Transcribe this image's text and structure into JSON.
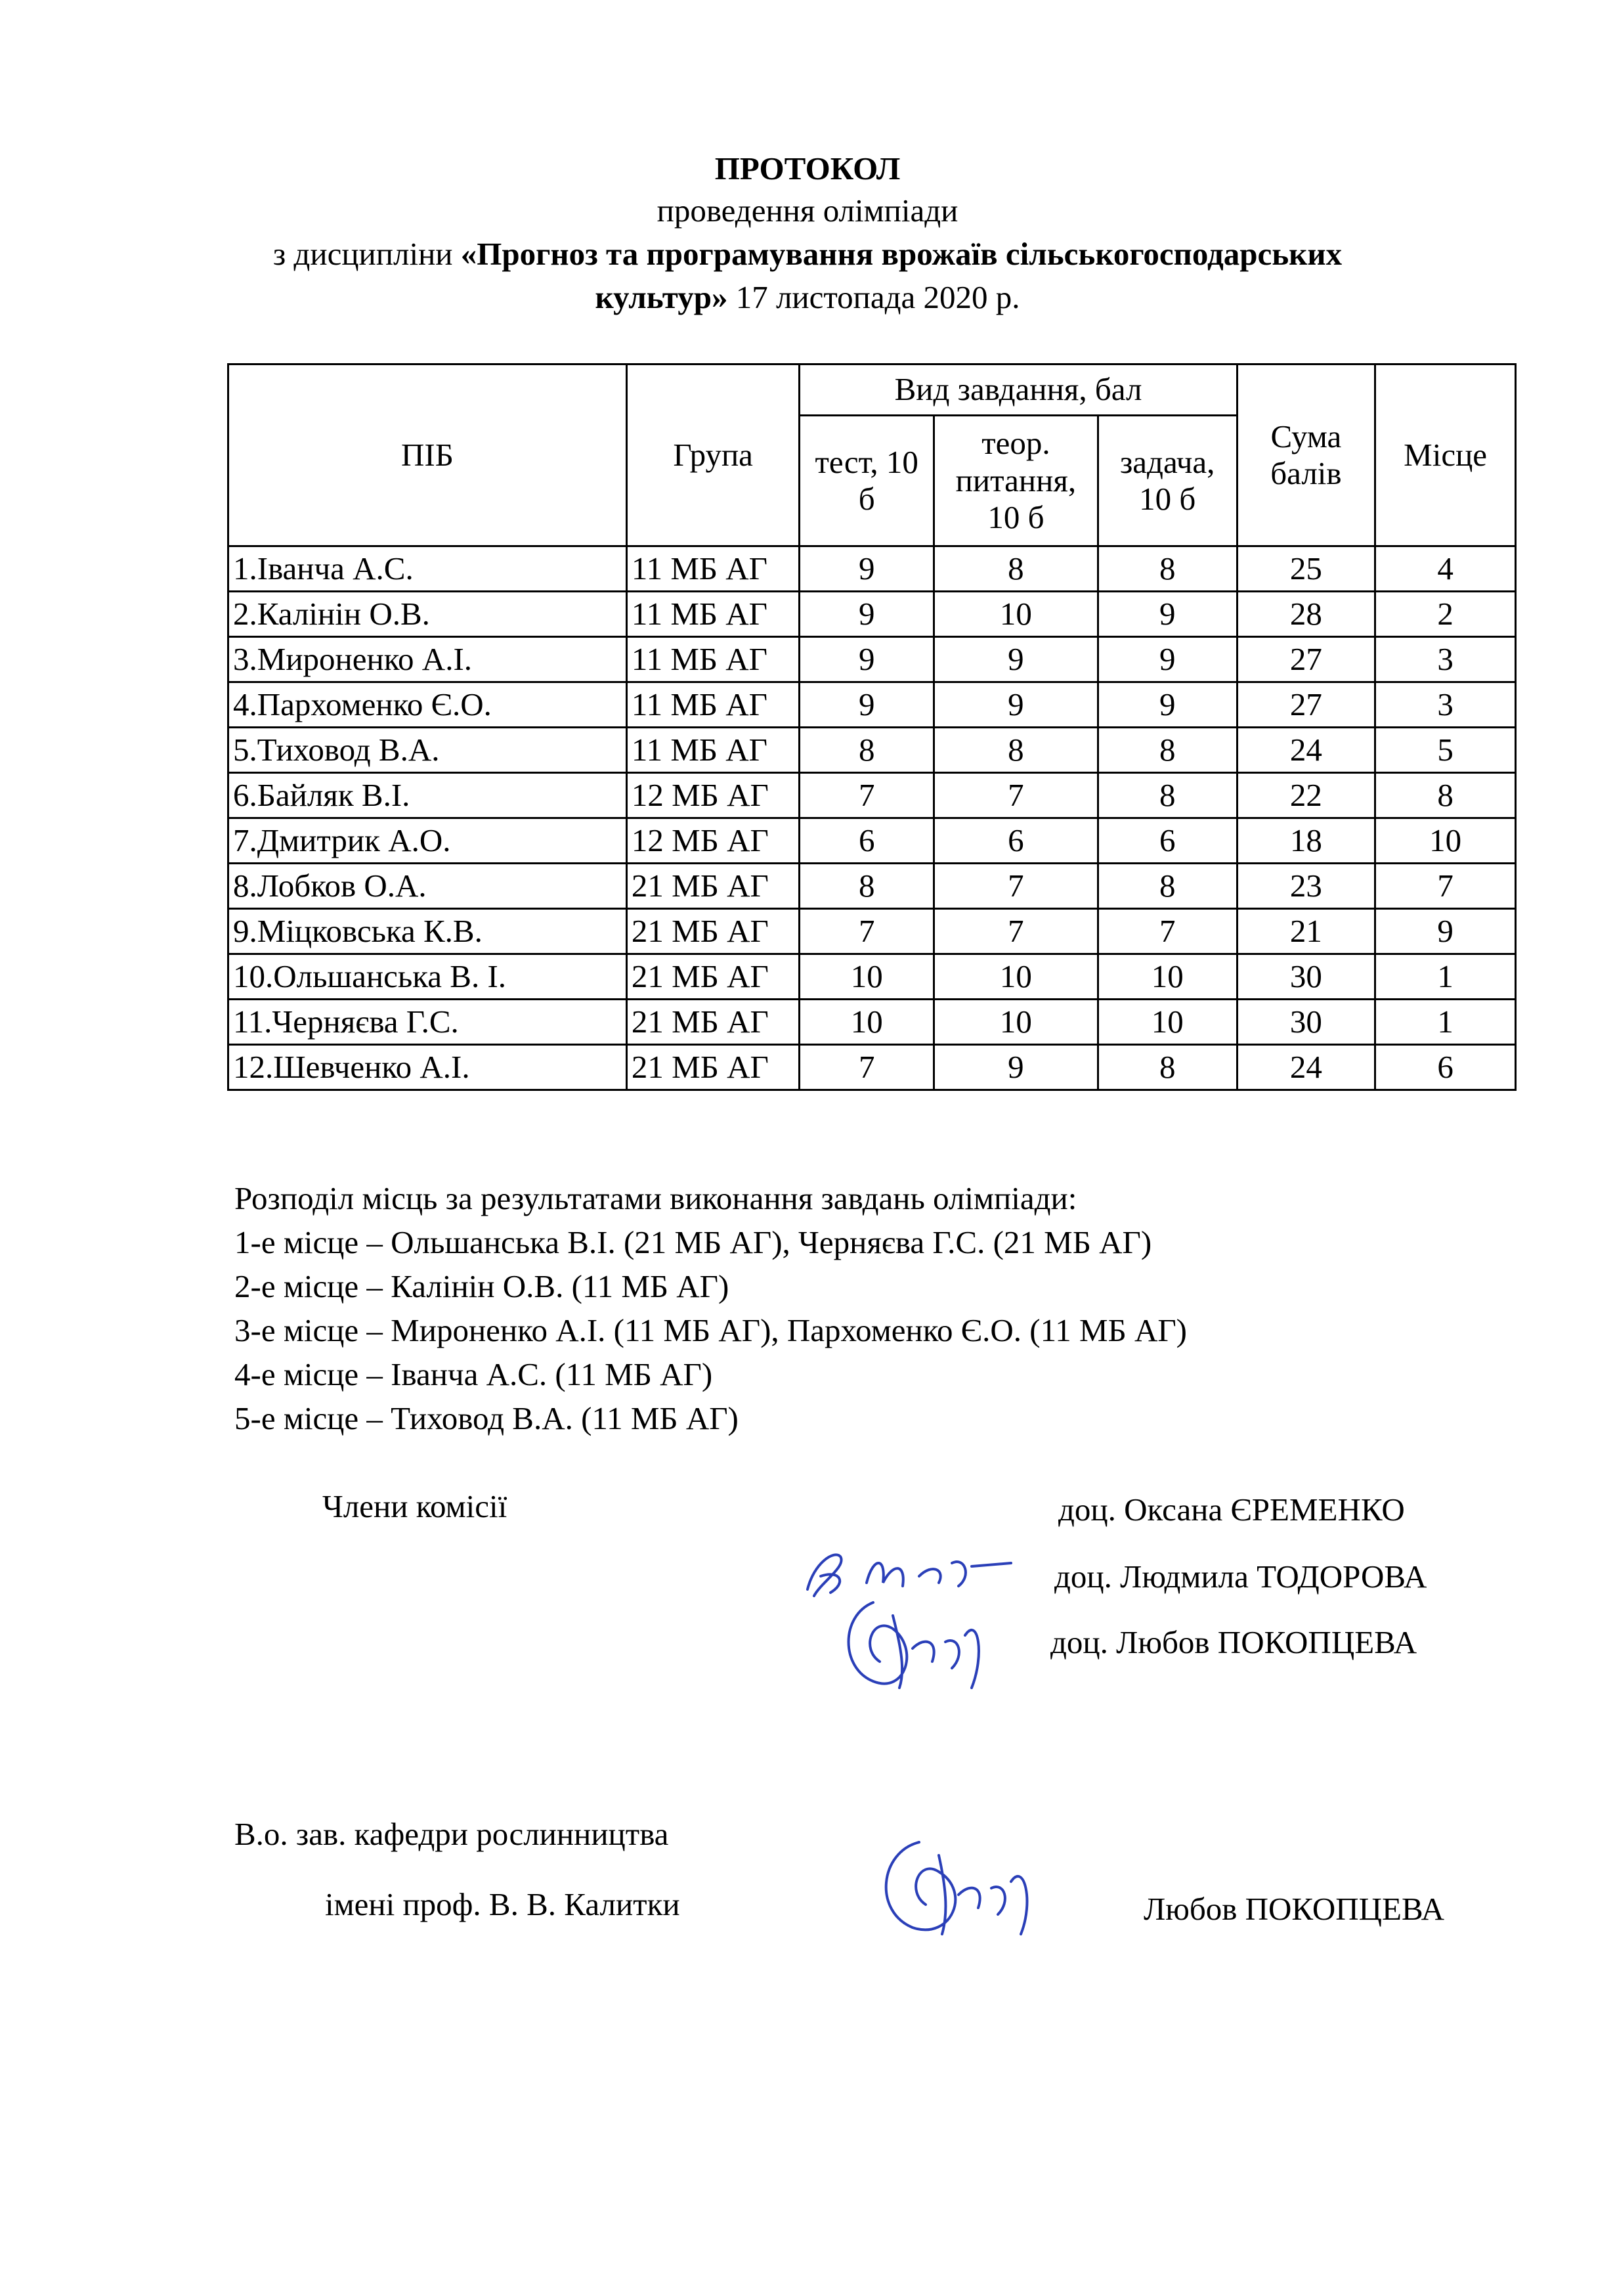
{
  "title": {
    "line1": "ПРОТОКОЛ",
    "line2": "проведення олімпіади",
    "line3_prefix": "з дисципліни ",
    "discipline_part1": "«Прогноз та програмування врожаїв сільськогосподарських",
    "discipline_part2": "культур»",
    "date": " 17 листопада 2020 р."
  },
  "table": {
    "headers": {
      "name": "ПІБ",
      "group": "Група",
      "task_type": "Вид завдання, бал",
      "test": "тест, 10 б",
      "theory": "теор. питання, 10 б",
      "problem": "задача, 10 б",
      "total": "Сума балів",
      "place": "Місце"
    },
    "rows": [
      {
        "name": "1.Іванча А.С.",
        "group": "11 МБ АГ",
        "test": "9",
        "theory": "8",
        "problem": "8",
        "total": "25",
        "place": "4"
      },
      {
        "name": "2.Калінін О.В.",
        "group": "11 МБ АГ",
        "test": "9",
        "theory": "10",
        "problem": "9",
        "total": "28",
        "place": "2"
      },
      {
        "name": "3.Мироненко А.І.",
        "group": "11 МБ АГ",
        "test": "9",
        "theory": "9",
        "problem": "9",
        "total": "27",
        "place": "3"
      },
      {
        "name": "4.Пархоменко Є.О.",
        "group": "11 МБ АГ",
        "test": "9",
        "theory": "9",
        "problem": "9",
        "total": "27",
        "place": "3"
      },
      {
        "name": "5.Тиховод В.А.",
        "group": "11 МБ АГ",
        "test": "8",
        "theory": "8",
        "problem": "8",
        "total": "24",
        "place": "5"
      },
      {
        "name": "6.Байляк В.І.",
        "group": "12 МБ АГ",
        "test": "7",
        "theory": "7",
        "problem": "8",
        "total": "22",
        "place": "8"
      },
      {
        "name": "7.Дмитрик А.О.",
        "group": "12 МБ АГ",
        "test": "6",
        "theory": "6",
        "problem": "6",
        "total": "18",
        "place": "10"
      },
      {
        "name": "8.Лобков О.А.",
        "group": "21 МБ АГ",
        "test": "8",
        "theory": "7",
        "problem": "8",
        "total": "23",
        "place": "7"
      },
      {
        "name": "9.Міцковська К.В.",
        "group": "21 МБ АГ",
        "test": "7",
        "theory": "7",
        "problem": "7",
        "total": "21",
        "place": "9"
      },
      {
        "name": "10.Ольшанська В. І.",
        "group": "21 МБ АГ",
        "test": "10",
        "theory": "10",
        "problem": "10",
        "total": "30",
        "place": "1"
      },
      {
        "name": "11.Черняєва Г.С.",
        "group": "21 МБ АГ",
        "test": "10",
        "theory": "10",
        "problem": "10",
        "total": "30",
        "place": "1"
      },
      {
        "name": "12.Шевченко А.І.",
        "group": "21 МБ АГ",
        "test": "7",
        "theory": "9",
        "problem": "8",
        "total": "24",
        "place": "6"
      }
    ]
  },
  "summary": {
    "heading": "Розподіл місць за результатами виконання завдань олімпіади:",
    "lines": [
      "1-е місце – Ольшанська В.І. (21 МБ АГ), Черняєва Г.С. (21 МБ АГ)",
      "2-е місце – Калінін О.В. (11 МБ АГ)",
      "3-е місце – Мироненко А.І. (11 МБ АГ), Пархоменко Є.О. (11 МБ АГ)",
      "4-е місце – Іванча А.С. (11 МБ АГ)",
      "5-е місце – Тиховод В.А. (11 МБ АГ)"
    ]
  },
  "commission": {
    "label": "Члени комісії",
    "members": [
      "доц. Оксана ЄРЕМЕНКО",
      "доц. Людмила ТОДОРОВА",
      "доц. Любов ПОКОПЦЕВА"
    ]
  },
  "head": {
    "title_line1": "В.о. зав. кафедри рослинництва",
    "title_line2": "імені проф. В. В. Калитки",
    "name": "Любов ПОКОПЦЕВА"
  },
  "colors": {
    "ink": "#000000",
    "signature": "#2a3fb8"
  }
}
